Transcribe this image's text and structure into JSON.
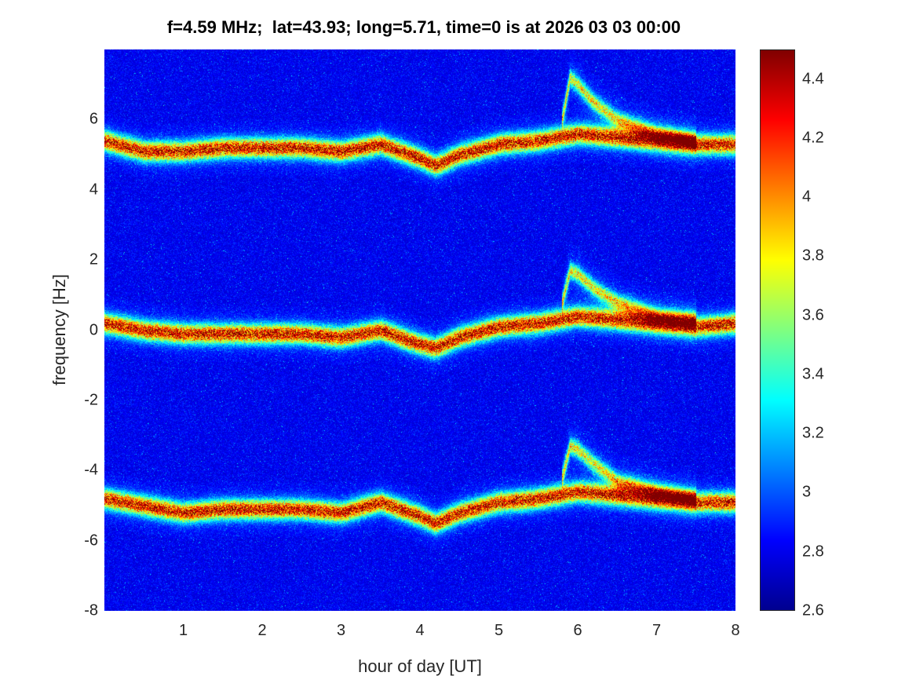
{
  "chart_data": {
    "type": "heatmap",
    "title": "f=4.59 MHz;  lat=43.93; long=5.71, time=0 is at 2026 03 03 00:00",
    "xlabel": "hour of day [UT]",
    "ylabel": "frequency [Hz]",
    "xlim": [
      0,
      8
    ],
    "ylim": [
      -8,
      8
    ],
    "xticks": [
      "1",
      "2",
      "3",
      "4",
      "5",
      "6",
      "7",
      "8"
    ],
    "yticks": [
      "-8",
      "-6",
      "-4",
      "-2",
      "0",
      "2",
      "4",
      "6"
    ],
    "colorbar": {
      "range": [
        2.6,
        4.5
      ],
      "ticks": [
        "2.6",
        "2.8",
        "3",
        "3.2",
        "3.4",
        "3.6",
        "3.8",
        "4",
        "4.2",
        "4.4"
      ],
      "colormap": "jet"
    },
    "traces": [
      {
        "name": "central",
        "hours": [
          0,
          0.5,
          1,
          1.5,
          2,
          2.5,
          3,
          3.5,
          4,
          4.2,
          4.5,
          5,
          5.5,
          6,
          6.5,
          7,
          7.5,
          8
        ],
        "freq": [
          0.2,
          0.0,
          -0.1,
          -0.1,
          -0.1,
          -0.1,
          -0.2,
          0.0,
          -0.4,
          -0.5,
          -0.2,
          0.1,
          0.2,
          0.4,
          0.3,
          0.2,
          0.1,
          0.2
        ]
      },
      {
        "name": "upper",
        "hours": [
          0,
          0.5,
          1,
          1.5,
          2,
          2.5,
          3,
          3.5,
          4,
          4.2,
          4.5,
          5,
          5.5,
          6,
          6.5,
          7,
          7.5,
          8
        ],
        "freq": [
          5.4,
          5.1,
          5.1,
          5.2,
          5.2,
          5.2,
          5.1,
          5.3,
          4.9,
          4.7,
          5.0,
          5.3,
          5.4,
          5.6,
          5.5,
          5.4,
          5.3,
          5.3
        ]
      },
      {
        "name": "lower",
        "hours": [
          0,
          0.5,
          1,
          1.5,
          2,
          2.5,
          3,
          3.5,
          4,
          4.2,
          4.5,
          5,
          5.5,
          6,
          6.5,
          7,
          7.5,
          8
        ],
        "freq": [
          -4.8,
          -5.0,
          -5.2,
          -5.1,
          -5.1,
          -5.1,
          -5.2,
          -4.9,
          -5.3,
          -5.5,
          -5.2,
          -4.9,
          -4.8,
          -4.6,
          -4.7,
          -4.8,
          -4.9,
          -4.9
        ]
      },
      {
        "name": "echo-central",
        "hours": [
          5.8,
          5.9,
          6.0,
          6.2,
          6.5,
          7.0,
          7.5
        ],
        "freq": [
          0.8,
          1.7,
          1.6,
          1.2,
          0.8,
          0.4,
          0.3
        ]
      },
      {
        "name": "echo-upper",
        "hours": [
          5.8,
          5.9,
          6.0,
          6.2,
          6.5,
          7.0,
          7.5
        ],
        "freq": [
          6.0,
          7.2,
          7.0,
          6.5,
          6.0,
          5.6,
          5.4
        ]
      },
      {
        "name": "echo-lower",
        "hours": [
          5.8,
          5.9,
          6.0,
          6.2,
          6.5,
          7.0,
          7.5
        ],
        "freq": [
          -4.2,
          -3.3,
          -3.4,
          -3.8,
          -4.3,
          -4.6,
          -4.8
        ]
      }
    ]
  }
}
